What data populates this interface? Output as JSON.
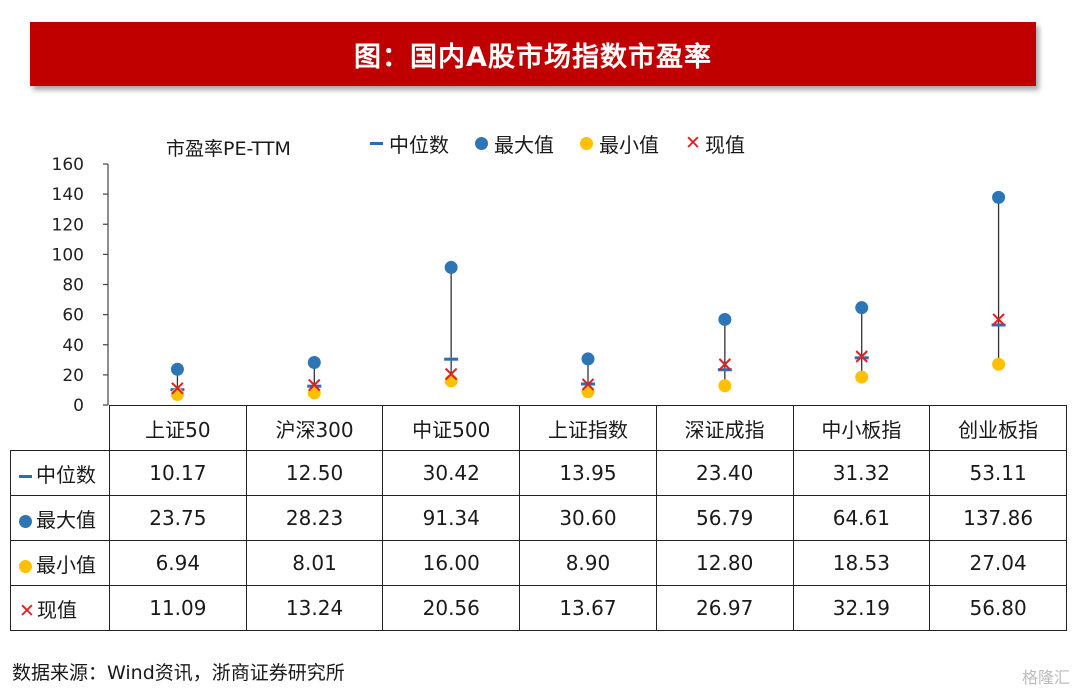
{
  "banner": {
    "title": "图：国内A股市场指数市盈率"
  },
  "source": "数据来源：Wind资讯，浙商证券研究所",
  "watermark": "格隆汇",
  "colors": {
    "banner": "#c00000",
    "median": "#2e6db4",
    "max": "#2e75b6",
    "min": "#ffc000",
    "current": "#e02020"
  },
  "chart_data": {
    "type": "scatter",
    "ylabel": "市盈率PE-TTM",
    "ylim": [
      0,
      160
    ],
    "yticks": [
      0,
      20,
      40,
      60,
      80,
      100,
      120,
      140,
      160
    ],
    "grid": false,
    "legend": "top",
    "categories": [
      "上证50",
      "沪深300",
      "中证500",
      "上证指数",
      "深证成指",
      "中小板指",
      "创业板指"
    ],
    "series": [
      {
        "name": "中位数",
        "marker": "dash",
        "values_text": [
          "10.17",
          "12.50",
          "30.42",
          "13.95",
          "23.40",
          "31.32",
          "53.11"
        ]
      },
      {
        "name": "最大值",
        "marker": "circle",
        "values_text": [
          "23.75",
          "28.23",
          "91.34",
          "30.60",
          "56.79",
          "64.61",
          "137.86"
        ]
      },
      {
        "name": "最小值",
        "marker": "circle",
        "values_text": [
          "6.94",
          "8.01",
          "16.00",
          "8.90",
          "12.80",
          "18.53",
          "27.04"
        ]
      },
      {
        "name": "现值",
        "marker": "x",
        "values_text": [
          "11.09",
          "13.24",
          "20.56",
          "13.67",
          "26.97",
          "32.19",
          "56.80"
        ]
      }
    ]
  }
}
